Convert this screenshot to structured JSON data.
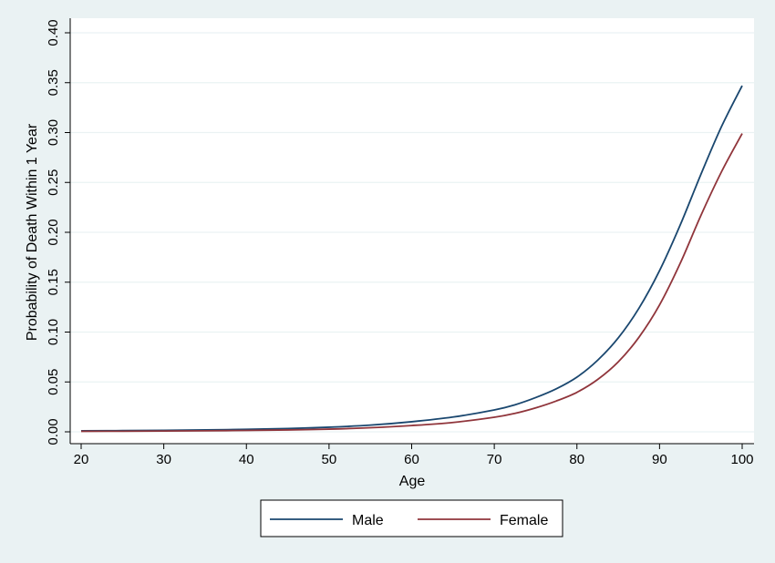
{
  "chart_data": {
    "type": "line",
    "xlabel": "Age",
    "ylabel": "Probability of Death Within 1 Year",
    "xlim": [
      20,
      100
    ],
    "ylim": [
      0,
      0.4
    ],
    "xticks": [
      20,
      30,
      40,
      50,
      60,
      70,
      80,
      90,
      100
    ],
    "yticks": [
      0,
      0.05,
      0.1,
      0.15,
      0.2,
      0.25,
      0.3,
      0.35,
      0.4
    ],
    "ytick_labels": [
      "0.00",
      "0.05",
      "0.10",
      "0.15",
      "0.20",
      "0.25",
      "0.30",
      "0.35",
      "0.40"
    ],
    "grid": "horizontal",
    "legend_position": "bottom",
    "x": [
      20,
      25,
      30,
      35,
      40,
      45,
      50,
      55,
      60,
      65,
      70,
      72.5,
      75,
      77.5,
      80,
      82.5,
      85,
      87.5,
      90,
      92.5,
      95,
      97.5,
      100
    ],
    "series": [
      {
        "name": "Male",
        "color": "#1a476f",
        "values": [
          0.001,
          0.0012,
          0.0015,
          0.0019,
          0.0025,
          0.0033,
          0.0046,
          0.0067,
          0.0101,
          0.0148,
          0.0219,
          0.0271,
          0.0343,
          0.0431,
          0.0548,
          0.0717,
          0.0941,
          0.1238,
          0.1616,
          0.2073,
          0.258,
          0.306,
          0.347
        ]
      },
      {
        "name": "Female",
        "color": "#90353b",
        "values": [
          0.0005,
          0.0006,
          0.0008,
          0.001,
          0.0014,
          0.0019,
          0.0027,
          0.0041,
          0.0063,
          0.0094,
          0.0146,
          0.0185,
          0.024,
          0.0309,
          0.0396,
          0.0524,
          0.0701,
          0.0947,
          0.1272,
          0.1689,
          0.2168,
          0.2607,
          0.299
        ]
      }
    ]
  }
}
